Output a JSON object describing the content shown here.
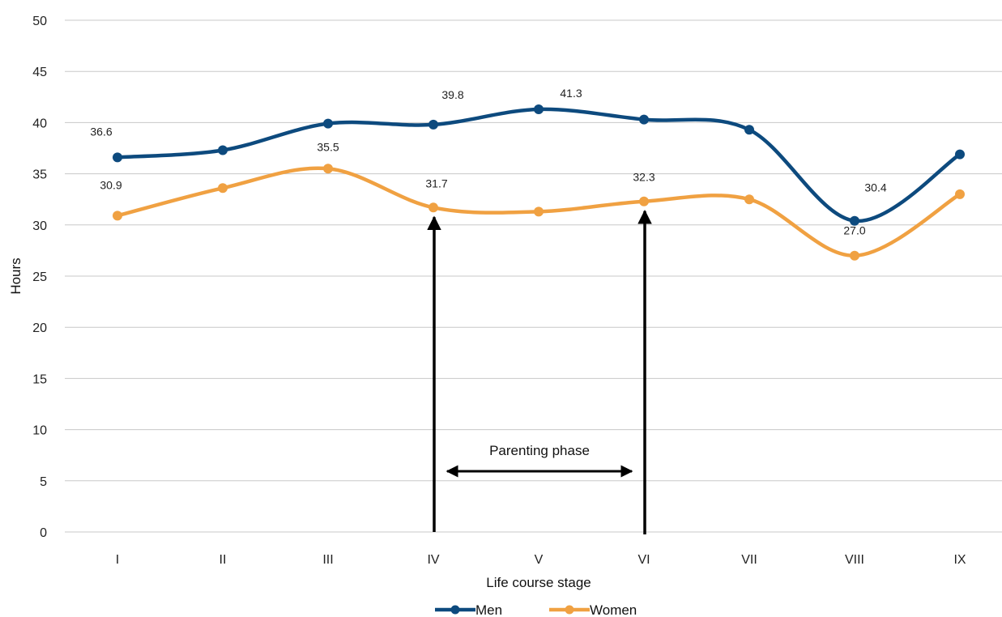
{
  "chart_data": {
    "type": "line",
    "categories": [
      "I",
      "II",
      "III",
      "IV",
      "V",
      "VI",
      "VII",
      "VIII",
      "IX"
    ],
    "xlabel": "Life course stage",
    "ylabel": "Hours",
    "ylim": [
      0,
      50
    ],
    "yticks": [
      0,
      5,
      10,
      15,
      20,
      25,
      30,
      35,
      40,
      45,
      50
    ],
    "grid": true,
    "smooth": true,
    "legend_position": "bottom",
    "series": [
      {
        "name": "Men",
        "color": "#0d4a7e",
        "values": [
          36.6,
          37.3,
          39.9,
          39.8,
          41.3,
          40.3,
          39.3,
          30.4,
          36.9
        ],
        "labels": [
          "36.6",
          null,
          null,
          "39.8",
          "41.3",
          null,
          null,
          "30.4",
          null
        ]
      },
      {
        "name": "Women",
        "color": "#f0a142",
        "values": [
          30.9,
          33.6,
          35.5,
          31.7,
          31.3,
          32.3,
          32.5,
          27.0,
          33.0
        ],
        "labels": [
          "30.9",
          null,
          "35.5",
          "31.7",
          null,
          "32.3",
          null,
          "27.0",
          null
        ]
      }
    ],
    "annotations": {
      "phase_text": "Parenting phase",
      "phase_start": "IV",
      "phase_end": "VI"
    }
  }
}
